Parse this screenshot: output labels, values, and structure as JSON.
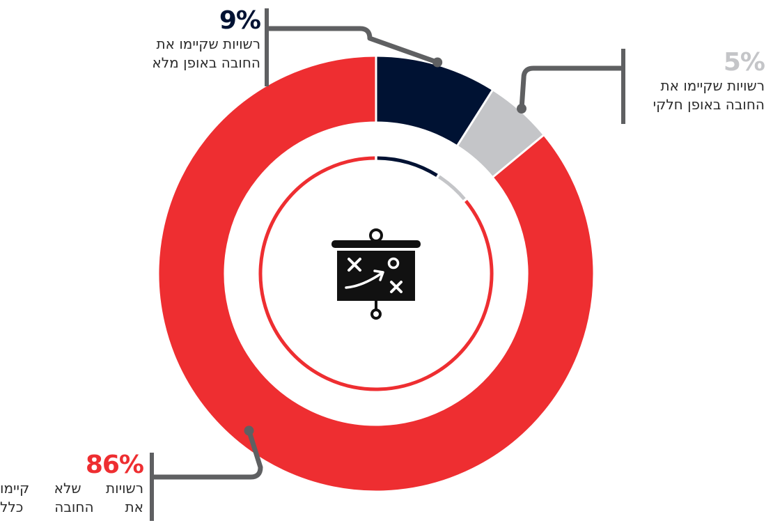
{
  "chart_data": {
    "type": "pie",
    "style": "donut",
    "title": "",
    "series": [
      {
        "name": "רשויות שקיימו את החובה באופן מלא",
        "value": 9,
        "value_label": "9%",
        "color": "#001233"
      },
      {
        "name": "רשויות שקיימו את החובה באופן חלקי",
        "value": 5,
        "value_label": "5%",
        "color": "#c4c5c8"
      },
      {
        "name": "רשויות שלא קיימו את החובה כלל",
        "value": 86,
        "value_label": "86%",
        "color": "#ee2e31"
      }
    ],
    "legend": "none",
    "leader_line_color": "#5f6062",
    "center_icon": "strategy-board-icon"
  },
  "callouts": {
    "full": {
      "pct": "9%",
      "pct_color": "#001233",
      "line1": "רשויות שקיימו את",
      "line2": "החובה באופן מלא"
    },
    "partial": {
      "pct": "5%",
      "pct_color": "#c4c5c8",
      "line1": "רשויות שקיימו את",
      "line2": "החובה באופן חלקי"
    },
    "none": {
      "pct": "86%",
      "pct_color": "#ee2e31",
      "line1": "רשויות שלא קיימו",
      "line2": "את החובה כלל"
    }
  }
}
